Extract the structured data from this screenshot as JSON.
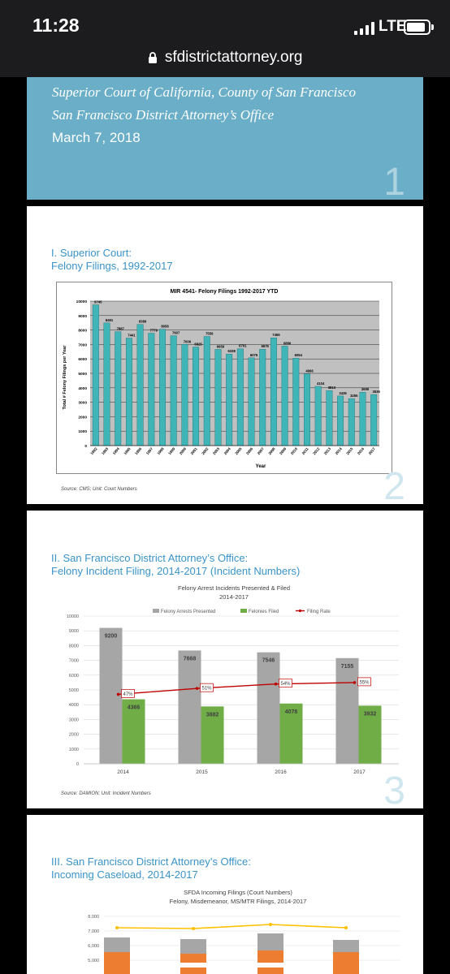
{
  "status_bar": {
    "time": "11:28",
    "network": "LTE"
  },
  "browser": {
    "url": "sfdistrictattorney.org"
  },
  "slide1": {
    "line1": "Superior Court of California, County of San Francisco",
    "line2": "San Francisco District Attorney’s Office",
    "line3": "March 7, 2018",
    "number": "1"
  },
  "slide2": {
    "title_line1": "I. Superior Court:",
    "title_line2": "Felony Filings, 1992-2017",
    "source": "Source: CMS; Unit: Court Numbers",
    "number": "2"
  },
  "slide3": {
    "title_line1": "II. San Francisco District Attorney’s Office:",
    "title_line2": "Felony Incident Filing, 2014-2017 (Incident Numbers)",
    "source": "Source: DAMION; Unit: Incident Numbers",
    "number": "3"
  },
  "slide4": {
    "title_line1": "III. San Francisco District Attorney’s Office:",
    "title_line2": "Incoming Caseload, 2014-2017"
  },
  "chart_data": [
    {
      "type": "bar",
      "title": "MIR 4541- Felony Filings 1992-2017 YTD",
      "xlabel": "Year",
      "ylabel": "Total # Felony Filings per Year",
      "ylim": [
        0,
        10000
      ],
      "yticks": [
        0,
        1000,
        2000,
        3000,
        4000,
        5000,
        6000,
        7000,
        8000,
        9000,
        10000
      ],
      "grid": true,
      "bar_color": "#3fb5b8",
      "categories": [
        "1992",
        "1993",
        "1994",
        "1995",
        "1996",
        "1997",
        "1998",
        "1999",
        "2000",
        "2001",
        "2002",
        "2003",
        "2004",
        "2005",
        "2006",
        "2007",
        "2008",
        "2009",
        "2010",
        "2011",
        "2012",
        "2013",
        "2014",
        "2015",
        "2016",
        "2017"
      ],
      "values": [
        9745,
        8491,
        7887,
        7441,
        8389,
        7779,
        8058,
        7607,
        7006,
        6825,
        7556,
        6659,
        6338,
        6701,
        6075,
        6675,
        7459,
        6886,
        6054,
        4966,
        4104,
        3813,
        3435,
        3255,
        3699,
        3536
      ]
    },
    {
      "type": "bar",
      "title": "Felony Arrest Incidents Presented & Filed",
      "subtitle": "2014-2017",
      "ylim": [
        0,
        10000
      ],
      "yticks": [
        0,
        1000,
        2000,
        3000,
        4000,
        5000,
        6000,
        7000,
        8000,
        9000,
        10000
      ],
      "legend_position": "top",
      "categories": [
        "2014",
        "2015",
        "2016",
        "2017"
      ],
      "series": [
        {
          "name": "Felony Arrests Presented",
          "values": [
            9200,
            7668,
            7546,
            7155
          ],
          "color": "#a6a6a6"
        },
        {
          "name": "Felonies Filed",
          "values": [
            4366,
            3882,
            4078,
            3932
          ],
          "color": "#70ad47"
        }
      ],
      "line_series": {
        "name": "Filing Rate",
        "values": [
          47,
          51,
          54,
          55
        ],
        "labels": [
          "47%",
          "51%",
          "54%",
          "55%"
        ],
        "color": "#c00000"
      }
    },
    {
      "type": "bar",
      "title": "SFDA Incoming Filings (Court Numbers)",
      "subtitle": "Felony, Misdemeanor, MS/MTR Filings, 2014-2017",
      "yticks_visible": [
        "5,000",
        "6,000",
        "7,000",
        "8,000"
      ],
      "stack_colors": [
        "#ed7d31",
        "#a6a6a6"
      ],
      "line_color": "#ffc000"
    }
  ]
}
